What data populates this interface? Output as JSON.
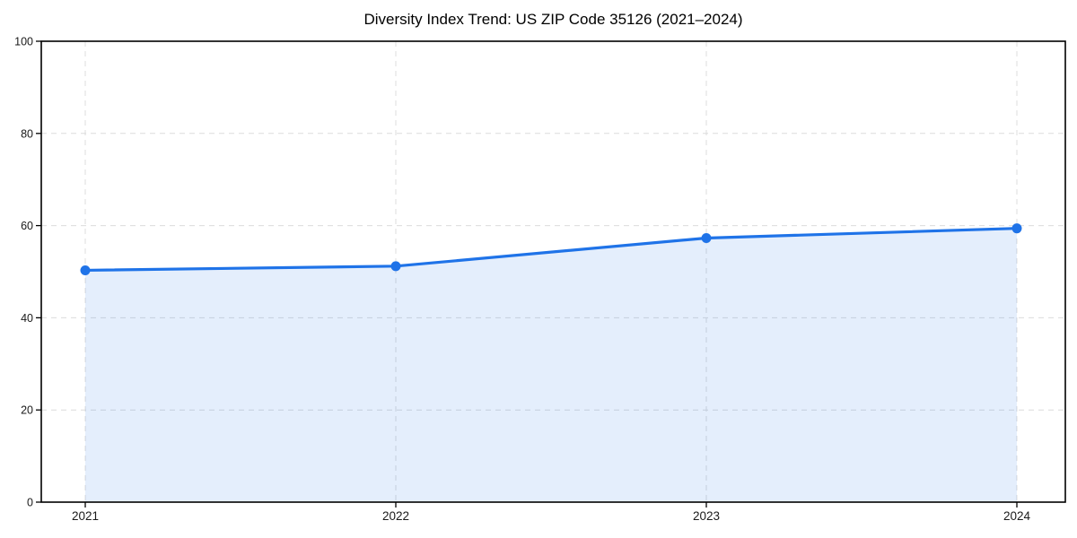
{
  "chart_data": {
    "type": "area",
    "title": "Diversity Index Trend: US ZIP Code 35126 (2021–2024)",
    "categories": [
      "2021",
      "2022",
      "2023",
      "2024"
    ],
    "series": [
      {
        "name": "Diversity Index",
        "values": [
          50.3,
          51.2,
          57.3,
          59.4
        ]
      }
    ],
    "xlabel": "",
    "ylabel": "",
    "ylim": [
      0,
      100
    ],
    "y_ticks": [
      0,
      20,
      40,
      60,
      80,
      100
    ],
    "grid": true,
    "grid_style": "dashed",
    "legend_position": "none",
    "colors": {
      "line": "#1f73e8",
      "marker": "#1f73e8",
      "fill": "rgba(31, 115, 232, 0.12)",
      "grid": "#dcdcdc",
      "spine": "#000000",
      "tick_text": "#1a1a1a",
      "title_text": "#000000",
      "background": "#ffffff"
    }
  }
}
